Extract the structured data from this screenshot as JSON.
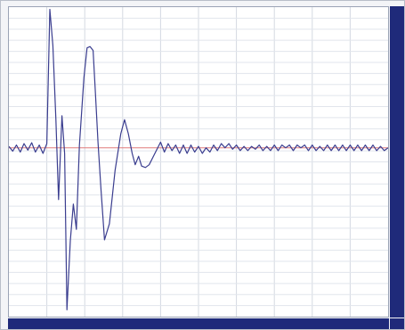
{
  "chart_data": {
    "type": "line",
    "title": "",
    "xlabel": "",
    "ylabel": "",
    "grid": true,
    "xlim": [
      0,
      100
    ],
    "ylim": [
      -60,
      50
    ],
    "baseline": {
      "y": 0,
      "color": "#e07a7a"
    },
    "series": [
      {
        "color": "#3a3d8f",
        "points": [
          [
            0,
            0.5
          ],
          [
            1,
            -1.2
          ],
          [
            2,
            1.0
          ],
          [
            3,
            -1.5
          ],
          [
            4,
            1.5
          ],
          [
            5,
            -0.8
          ],
          [
            6,
            1.8
          ],
          [
            7,
            -1.5
          ],
          [
            8,
            1.0
          ],
          [
            9,
            -2.0
          ],
          [
            10,
            1.5
          ],
          [
            10.8,
            49.2
          ],
          [
            11.6,
            36.4
          ],
          [
            12.4,
            10.0
          ],
          [
            13.1,
            -18.4
          ],
          [
            14.0,
            11.4
          ],
          [
            14.7,
            -2.0
          ],
          [
            15.3,
            -57.6
          ],
          [
            16.2,
            -33.0
          ],
          [
            17.0,
            -20.0
          ],
          [
            17.8,
            -29.0
          ],
          [
            18.6,
            0.8
          ],
          [
            19.8,
            25.0
          ],
          [
            20.6,
            35.5
          ],
          [
            21.4,
            36.0
          ],
          [
            22.2,
            34.6
          ],
          [
            22.8,
            20.0
          ],
          [
            23.5,
            2.0
          ],
          [
            24.3,
            -15.0
          ],
          [
            25.2,
            -32.7
          ],
          [
            26.5,
            -27.0
          ],
          [
            28.0,
            -8.0
          ],
          [
            29.5,
            5.0
          ],
          [
            30.5,
            10.0
          ],
          [
            31.5,
            5.0
          ],
          [
            32.5,
            -2.0
          ],
          [
            33.3,
            -6.0
          ],
          [
            34.2,
            -3.0
          ],
          [
            35.0,
            -6.5
          ],
          [
            36.0,
            -7.0
          ],
          [
            37.0,
            -6.0
          ],
          [
            38.5,
            -2.0
          ],
          [
            40.0,
            2.0
          ],
          [
            41.0,
            -1.5
          ],
          [
            42,
            1.5
          ],
          [
            43,
            -1
          ],
          [
            44,
            1
          ],
          [
            45,
            -2
          ],
          [
            46,
            1
          ],
          [
            47,
            -2
          ],
          [
            48,
            1
          ],
          [
            49,
            -1.5
          ],
          [
            50,
            0.5
          ],
          [
            51,
            -2
          ],
          [
            52,
            0
          ],
          [
            53,
            -1.5
          ],
          [
            54,
            1
          ],
          [
            55,
            -1
          ],
          [
            56,
            1.5
          ],
          [
            57,
            0
          ],
          [
            58,
            1.5
          ],
          [
            59,
            -0.5
          ],
          [
            60,
            1
          ],
          [
            61,
            -1
          ],
          [
            62,
            0.5
          ],
          [
            63,
            -1
          ],
          [
            64,
            0.5
          ],
          [
            65,
            -0.5
          ],
          [
            66,
            1
          ],
          [
            67,
            -1
          ],
          [
            68,
            0.5
          ],
          [
            69,
            -1
          ],
          [
            70,
            1
          ],
          [
            71,
            -1
          ],
          [
            72,
            1
          ],
          [
            73,
            0
          ],
          [
            74,
            1
          ],
          [
            75,
            -1
          ],
          [
            76,
            1
          ],
          [
            77,
            0
          ],
          [
            78,
            1
          ],
          [
            79,
            -1
          ],
          [
            80,
            1
          ],
          [
            81,
            -1
          ],
          [
            82,
            0.5
          ],
          [
            83,
            -1
          ],
          [
            84,
            1
          ],
          [
            85,
            -1
          ],
          [
            86,
            1
          ],
          [
            87,
            -1
          ],
          [
            88,
            1
          ],
          [
            89,
            -1
          ],
          [
            90,
            1
          ],
          [
            91,
            -1
          ],
          [
            92,
            1
          ],
          [
            93,
            -1
          ],
          [
            94,
            1
          ],
          [
            95,
            -1
          ],
          [
            96,
            1
          ],
          [
            97,
            -1
          ],
          [
            98,
            0.5
          ],
          [
            99,
            -1
          ],
          [
            100,
            0
          ]
        ]
      }
    ]
  }
}
